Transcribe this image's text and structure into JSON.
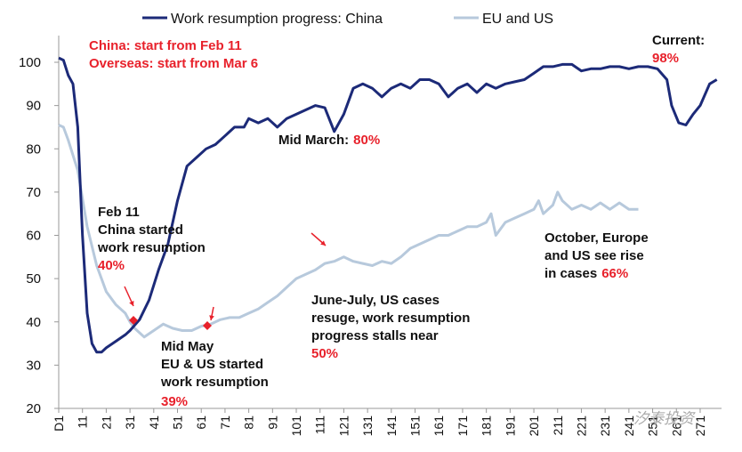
{
  "chart_data": {
    "type": "line",
    "series": [
      {
        "name": "Work resumption progress: China",
        "color": "#1c2a78",
        "x": [
          1,
          3,
          5,
          7,
          9,
          11,
          13,
          15,
          17,
          19,
          21,
          25,
          29,
          31,
          35,
          39,
          43,
          47,
          51,
          55,
          59,
          63,
          67,
          71,
          75,
          79,
          81,
          85,
          89,
          93,
          97,
          101,
          105,
          109,
          113,
          117,
          121,
          125,
          129,
          133,
          137,
          141,
          145,
          149,
          153,
          157,
          161,
          165,
          169,
          173,
          177,
          181,
          185,
          189,
          193,
          197,
          201,
          205,
          209,
          213,
          217,
          221,
          225,
          229,
          233,
          237,
          241,
          245,
          249,
          253,
          257,
          259,
          262,
          265,
          268,
          271,
          275,
          278
        ],
        "values": [
          101,
          100.5,
          97,
          95,
          85,
          60,
          42,
          35,
          33,
          33,
          34,
          35.5,
          37,
          38,
          40.5,
          45,
          52,
          58,
          68,
          76,
          78,
          80,
          81,
          83,
          85,
          85,
          87,
          86,
          87,
          85,
          87,
          88,
          89,
          90,
          89.5,
          84,
          88,
          94,
          95,
          94,
          92,
          94,
          95,
          94,
          96,
          96,
          95,
          92,
          94,
          95,
          93,
          95,
          94,
          95,
          95.5,
          96,
          97.5,
          99,
          99,
          99.5,
          99.5,
          98,
          98.5,
          98.5,
          99,
          99,
          98.5,
          99,
          99,
          98.5,
          96,
          90,
          86,
          85.5,
          88,
          90,
          95,
          96
        ]
      },
      {
        "name": "EU and US",
        "color": "#b7c9dc",
        "x": [
          1,
          3,
          5,
          9,
          13,
          17,
          21,
          25,
          29,
          31,
          33,
          37,
          41,
          45,
          49,
          53,
          57,
          61,
          65,
          69,
          73,
          77,
          81,
          85,
          89,
          93,
          97,
          101,
          105,
          109,
          113,
          117,
          121,
          125,
          129,
          133,
          137,
          141,
          145,
          149,
          153,
          157,
          161,
          165,
          169,
          173,
          177,
          181,
          183,
          185,
          189,
          193,
          197,
          201,
          203,
          205,
          209,
          211,
          213,
          217,
          221,
          225,
          229,
          233,
          237,
          241,
          245
        ],
        "values": [
          85.5,
          85,
          82,
          75,
          62,
          53,
          47,
          44,
          42,
          40,
          38.5,
          36.5,
          38,
          39.5,
          38.5,
          38,
          38,
          39,
          39.5,
          40.5,
          41,
          41,
          42,
          43,
          44.5,
          46,
          48,
          50,
          51,
          52,
          53.5,
          54,
          55,
          54,
          53.5,
          53,
          54,
          53.5,
          55,
          57,
          58,
          59,
          60,
          60,
          61,
          62,
          62,
          63,
          65,
          60,
          63,
          64,
          65,
          66,
          68,
          65,
          67,
          70,
          68,
          66,
          67,
          66,
          67.5,
          66,
          67.5,
          66,
          66
        ]
      }
    ],
    "xlim": [
      1,
      280
    ],
    "xticks": [
      {
        "value": 1,
        "label": "D1"
      },
      11,
      21,
      31,
      41,
      51,
      61,
      71,
      81,
      91,
      101,
      111,
      121,
      131,
      141,
      151,
      161,
      171,
      181,
      191,
      201,
      211,
      221,
      231,
      241,
      251,
      261,
      271
    ],
    "ylim": [
      20,
      100
    ],
    "yticks": [
      20,
      30,
      40,
      50,
      60,
      70,
      80,
      90,
      100
    ],
    "annotations": [
      [
        "China: start from Feb 11"
      ],
      [
        "Overseas: start from Mar 6"
      ],
      [
        "Current:"
      ],
      [
        "98%"
      ],
      [
        "Mid March:",
        "80%"
      ],
      [
        "Feb 11"
      ],
      [
        "China started"
      ],
      [
        "work resumption"
      ],
      [
        "40%"
      ],
      [
        "October, Europe"
      ],
      [
        "and US see rise"
      ],
      [
        "in cases",
        "66%"
      ],
      [
        "June-July, US cases"
      ],
      [
        "resuge, work resumption"
      ],
      [
        "progress stalls near"
      ],
      [
        "50%"
      ],
      [
        "Mid May"
      ],
      [
        "EU & US started"
      ],
      [
        "work resumption"
      ],
      [
        "39%"
      ]
    ],
    "watermark": "汐泰投资"
  }
}
